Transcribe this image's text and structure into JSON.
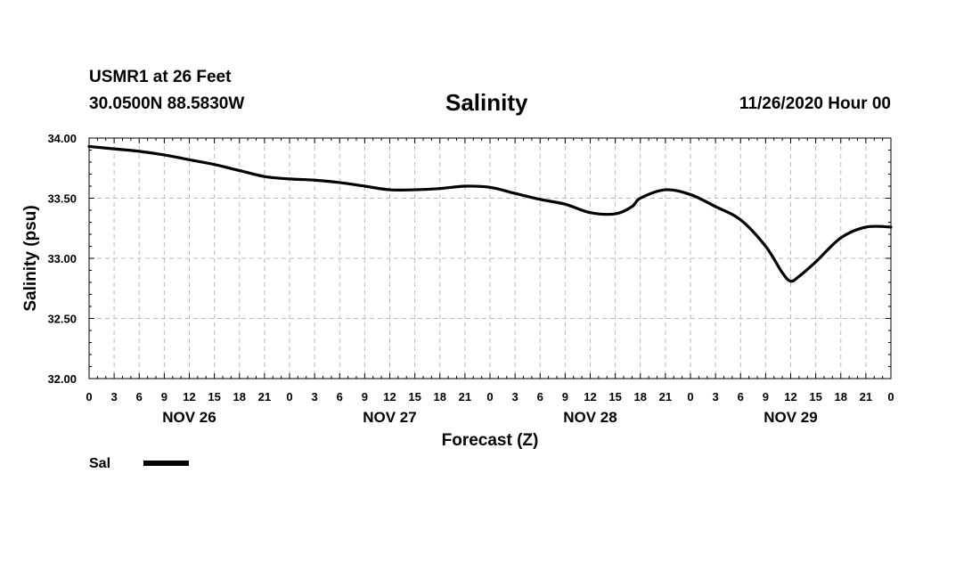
{
  "header": {
    "station": "USMR1 at 26 Feet",
    "coords": "30.0500N 88.5830W",
    "title": "Salinity",
    "run": "11/26/2020 Hour 00"
  },
  "chart_data": {
    "type": "line",
    "title": "Salinity",
    "xlabel": "Forecast (Z)",
    "ylabel": "Salinity (psu)",
    "ylim": [
      32.0,
      34.0
    ],
    "y_ticks": [
      "32.00",
      "32.50",
      "33.00",
      "33.50",
      "34.00"
    ],
    "x_range_hours": [
      0,
      96
    ],
    "x_tick_step_hours": 3,
    "x_tick_labels": [
      "0",
      "3",
      "6",
      "9",
      "12",
      "15",
      "18",
      "21",
      "0",
      "3",
      "6",
      "9",
      "12",
      "15",
      "18",
      "21",
      "0",
      "3",
      "6",
      "9",
      "12",
      "15",
      "18",
      "21",
      "0",
      "3",
      "6",
      "9",
      "12",
      "15",
      "18",
      "21",
      "0"
    ],
    "day_labels": [
      {
        "label": "NOV 26",
        "hour": 12
      },
      {
        "label": "NOV 27",
        "hour": 36
      },
      {
        "label": "NOV 28",
        "hour": 60
      },
      {
        "label": "NOV 29",
        "hour": 84
      }
    ],
    "grid": true,
    "legend": [
      {
        "name": "Sal",
        "color": "#000000"
      }
    ],
    "series": [
      {
        "name": "Sal",
        "color": "#000000",
        "x": [
          0,
          3,
          6,
          9,
          12,
          15,
          18,
          21,
          24,
          27,
          30,
          33,
          36,
          39,
          42,
          45,
          48,
          51,
          54,
          57,
          60,
          63,
          65,
          66,
          69,
          72,
          75,
          78,
          81,
          83,
          84,
          85,
          87,
          90,
          93,
          96
        ],
        "values": [
          33.93,
          33.91,
          33.89,
          33.86,
          33.82,
          33.78,
          33.73,
          33.68,
          33.66,
          33.65,
          33.63,
          33.6,
          33.57,
          33.57,
          33.58,
          33.6,
          33.59,
          33.54,
          33.49,
          33.45,
          33.38,
          33.37,
          33.43,
          33.5,
          33.57,
          33.53,
          33.43,
          33.32,
          33.1,
          32.88,
          32.81,
          32.85,
          32.97,
          33.17,
          33.26,
          33.26
        ]
      }
    ]
  }
}
